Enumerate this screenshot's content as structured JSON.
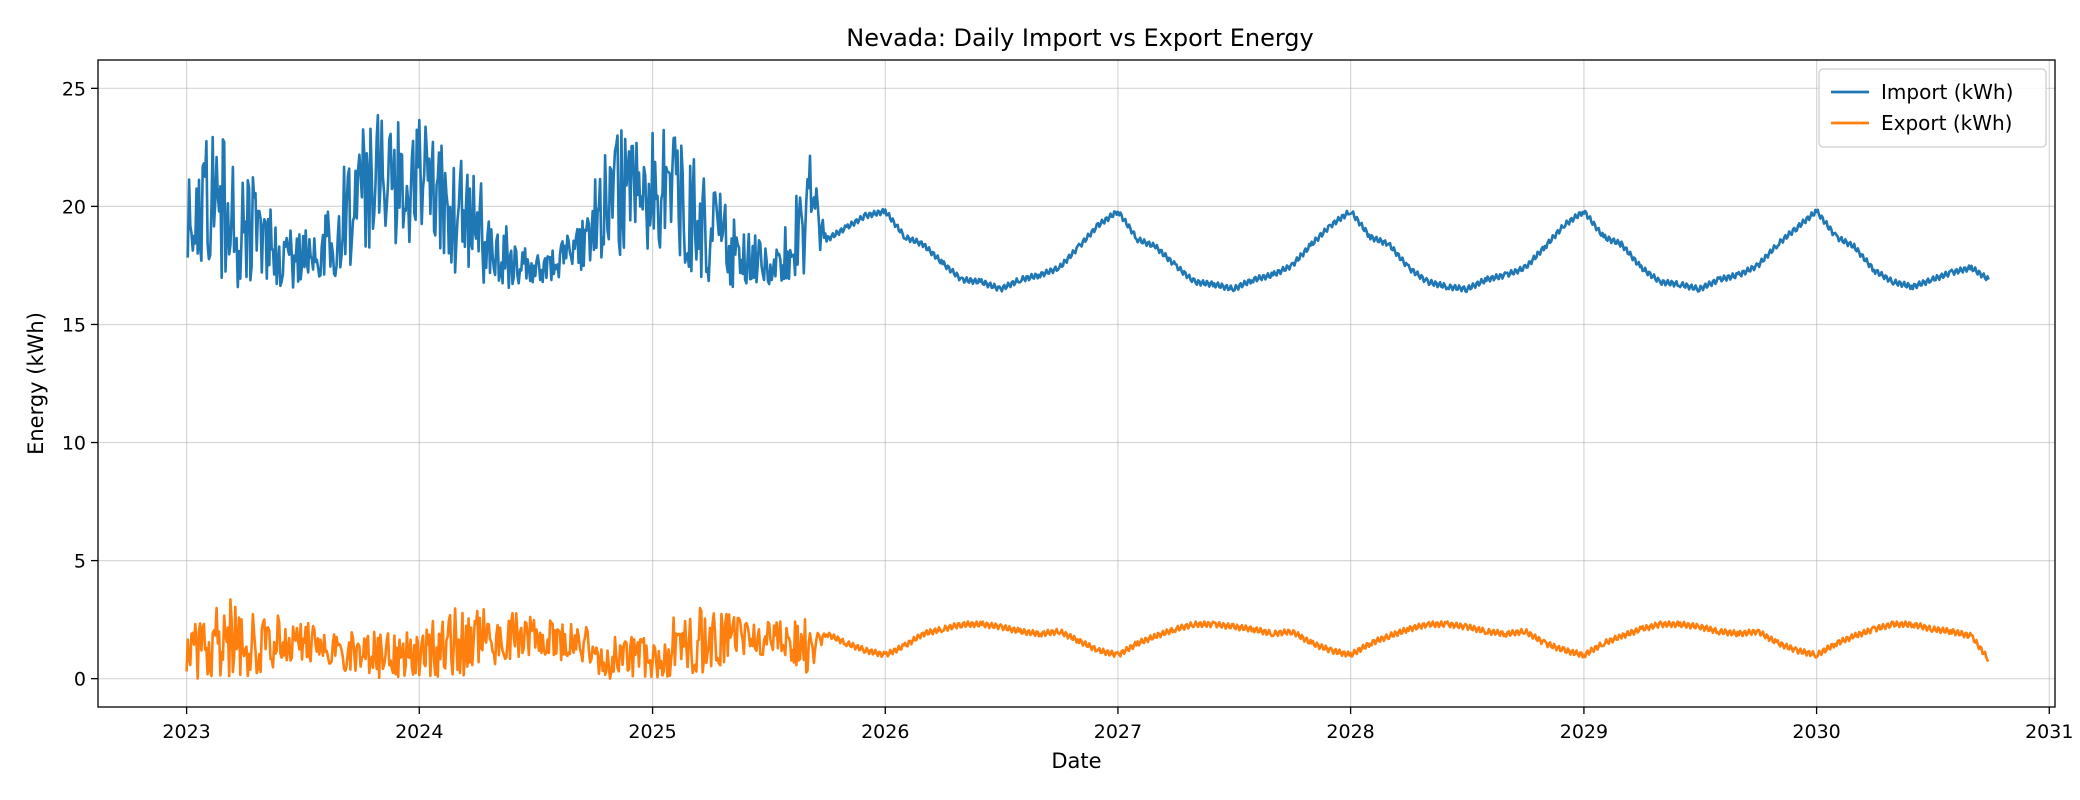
{
  "chart_data": {
    "type": "line",
    "title": "Nevada: Daily Import vs Export Energy",
    "xlabel": "Date",
    "ylabel": "Energy (kWh)",
    "xlim": [
      "2022-08-15",
      "2031-01-10"
    ],
    "ylim": [
      -1.2,
      26.2
    ],
    "xticks": [
      "2023",
      "2024",
      "2025",
      "2026",
      "2027",
      "2028",
      "2029",
      "2030",
      "2031"
    ],
    "yticks": [
      0,
      5,
      10,
      15,
      20,
      25
    ],
    "grid": true,
    "legend_position": "top-right",
    "series": [
      {
        "name": "Import (kWh)",
        "color": "#1f77b4",
        "x": [
          "2023-01-01",
          "2023-02-01",
          "2023-03-01",
          "2023-04-01",
          "2023-05-01",
          "2023-06-01",
          "2023-07-01",
          "2023-08-01",
          "2023-09-01",
          "2023-10-01",
          "2023-11-01",
          "2023-12-01",
          "2024-01-01",
          "2024-02-01",
          "2024-03-01",
          "2024-04-01",
          "2024-05-01",
          "2024-06-01",
          "2024-07-01",
          "2024-08-01",
          "2024-09-01",
          "2024-10-01",
          "2024-11-01",
          "2024-12-01",
          "2025-01-01",
          "2025-02-01",
          "2025-03-01",
          "2025-04-01",
          "2025-05-01",
          "2025-06-01",
          "2025-07-01",
          "2025-08-01",
          "2025-09-01",
          "2025-10-01",
          "2025-11-01",
          "2025-12-01",
          "2026-01-01",
          "2026-02-01",
          "2026-03-01",
          "2026-04-01",
          "2026-05-01",
          "2026-06-01",
          "2026-07-01",
          "2026-08-01",
          "2026-09-01",
          "2026-10-01",
          "2026-11-01",
          "2026-12-01",
          "2027-01-01",
          "2027-02-01",
          "2027-03-01",
          "2027-04-01",
          "2027-05-01",
          "2027-06-01",
          "2027-07-01",
          "2027-08-01",
          "2027-09-01",
          "2027-10-01",
          "2027-11-01",
          "2027-12-01",
          "2028-01-01",
          "2028-02-01",
          "2028-03-01",
          "2028-04-01",
          "2028-05-01",
          "2028-06-01",
          "2028-07-01",
          "2028-08-01",
          "2028-09-01",
          "2028-10-01",
          "2028-11-01",
          "2028-12-01",
          "2029-01-01",
          "2029-02-01",
          "2029-03-01",
          "2029-04-01",
          "2029-05-01",
          "2029-06-01",
          "2029-07-01",
          "2029-08-01",
          "2029-09-01",
          "2029-10-01",
          "2029-11-01",
          "2029-12-01",
          "2030-01-01",
          "2030-02-01",
          "2030-03-01",
          "2030-04-01",
          "2030-05-01",
          "2030-06-01",
          "2030-07-01",
          "2030-08-01",
          "2030-09-01",
          "2030-09-28"
        ],
        "y": [
          19.8,
          19.6,
          19.2,
          18.7,
          18.2,
          17.8,
          17.6,
          17.9,
          18.6,
          19.4,
          20.1,
          20.7,
          21.0,
          20.6,
          19.8,
          18.8,
          18.0,
          17.6,
          17.5,
          17.6,
          18.1,
          18.8,
          19.5,
          20.2,
          20.6,
          20.2,
          19.4,
          18.5,
          17.9,
          17.6,
          17.5,
          17.7,
          18.3,
          18.6,
          19.1,
          19.6,
          19.8,
          18.7,
          18.4,
          17.6,
          16.9,
          16.8,
          16.5,
          16.9,
          17.1,
          17.4,
          18.3,
          19.2,
          19.8,
          18.6,
          18.3,
          17.5,
          16.8,
          16.7,
          16.5,
          16.9,
          17.1,
          17.5,
          18.4,
          19.2,
          19.8,
          18.7,
          18.4,
          17.4,
          16.8,
          16.6,
          16.5,
          16.9,
          17.1,
          17.4,
          18.3,
          19.2,
          19.8,
          18.7,
          18.4,
          17.4,
          16.8,
          16.7,
          16.5,
          16.9,
          17.1,
          17.5,
          18.4,
          19.1,
          19.8,
          18.7,
          18.3,
          17.3,
          16.8,
          16.6,
          16.9,
          17.2,
          17.4,
          16.9
        ],
        "y_min": [
          17.9,
          17.3,
          16.7,
          16.4,
          16.4,
          16.5,
          16.6,
          16.9,
          17.1,
          17.5,
          18.0,
          18.1,
          18.1,
          17.9,
          17.0,
          16.6,
          16.6,
          16.5,
          16.7,
          16.9,
          17.1,
          17.4,
          17.9,
          18.0,
          18.1,
          17.8,
          17.1,
          16.6,
          16.5,
          16.4,
          16.6,
          16.9,
          17.1,
          18.6,
          19.1,
          19.6,
          19.8,
          18.7,
          18.4,
          17.6,
          16.9,
          16.8,
          16.5,
          16.9,
          17.1,
          17.4,
          18.3,
          19.2,
          19.8,
          18.6,
          18.3,
          17.5,
          16.8,
          16.7,
          16.5,
          16.9,
          17.1,
          17.5,
          18.4,
          19.2,
          19.8,
          18.7,
          18.4,
          17.4,
          16.8,
          16.6,
          16.5,
          16.9,
          17.1,
          17.4,
          18.3,
          19.2,
          19.8,
          18.7,
          18.4,
          17.4,
          16.8,
          16.7,
          16.5,
          16.9,
          17.1,
          17.5,
          18.4,
          19.1,
          19.8,
          18.7,
          18.3,
          17.3,
          16.8,
          16.6,
          16.9,
          17.2,
          17.4,
          16.9
        ],
        "y_max": [
          25.0,
          23.8,
          22.9,
          22.0,
          20.8,
          19.5,
          18.9,
          19.8,
          21.5,
          23.3,
          24.1,
          23.6,
          23.8,
          23.2,
          22.2,
          21.3,
          19.8,
          18.6,
          18.1,
          18.3,
          19.5,
          21.6,
          23.2,
          23.4,
          24.1,
          23.5,
          22.4,
          21.4,
          20.1,
          19.1,
          18.4,
          19.3,
          22.9,
          18.6,
          19.1,
          19.6,
          19.8,
          18.7,
          18.4,
          17.6,
          16.9,
          16.8,
          16.5,
          16.9,
          17.1,
          17.4,
          18.3,
          19.2,
          19.8,
          18.6,
          18.3,
          17.5,
          16.8,
          16.7,
          16.5,
          16.9,
          17.1,
          17.5,
          18.4,
          19.2,
          19.8,
          18.7,
          18.4,
          17.4,
          16.8,
          16.6,
          16.5,
          16.9,
          17.1,
          17.4,
          18.3,
          19.2,
          19.8,
          18.7,
          18.4,
          17.4,
          16.8,
          16.7,
          16.5,
          16.9,
          17.1,
          17.5,
          18.4,
          19.1,
          19.8,
          18.7,
          18.3,
          17.3,
          16.8,
          16.6,
          16.9,
          17.2,
          17.4,
          16.9
        ]
      },
      {
        "name": "Export (kWh)",
        "color": "#ff7f0e",
        "x": [
          "2023-01-01",
          "2023-02-01",
          "2023-03-01",
          "2023-04-01",
          "2023-05-01",
          "2023-06-01",
          "2023-07-01",
          "2023-08-01",
          "2023-09-01",
          "2023-10-01",
          "2023-11-01",
          "2023-12-01",
          "2024-01-01",
          "2024-02-01",
          "2024-03-01",
          "2024-04-01",
          "2024-05-01",
          "2024-06-01",
          "2024-07-01",
          "2024-08-01",
          "2024-09-01",
          "2024-10-01",
          "2024-11-01",
          "2024-12-01",
          "2025-01-01",
          "2025-02-01",
          "2025-03-01",
          "2025-04-01",
          "2025-05-01",
          "2025-06-01",
          "2025-07-01",
          "2025-08-01",
          "2025-09-01",
          "2025-10-01",
          "2025-11-01",
          "2025-12-01",
          "2026-01-01",
          "2026-02-01",
          "2026-03-01",
          "2026-04-01",
          "2026-05-01",
          "2026-06-01",
          "2026-07-01",
          "2026-08-01",
          "2026-09-01",
          "2026-10-01",
          "2026-11-01",
          "2026-12-01",
          "2027-01-01",
          "2027-02-01",
          "2027-03-01",
          "2027-04-01",
          "2027-05-01",
          "2027-06-01",
          "2027-07-01",
          "2027-08-01",
          "2027-09-01",
          "2027-10-01",
          "2027-11-01",
          "2027-12-01",
          "2028-01-01",
          "2028-02-01",
          "2028-03-01",
          "2028-04-01",
          "2028-05-01",
          "2028-06-01",
          "2028-07-01",
          "2028-08-01",
          "2028-09-01",
          "2028-10-01",
          "2028-11-01",
          "2028-12-01",
          "2029-01-01",
          "2029-02-01",
          "2029-03-01",
          "2029-04-01",
          "2029-05-01",
          "2029-06-01",
          "2029-07-01",
          "2029-08-01",
          "2029-09-01",
          "2029-10-01",
          "2029-11-01",
          "2029-12-01",
          "2030-01-01",
          "2030-02-01",
          "2030-03-01",
          "2030-04-01",
          "2030-05-01",
          "2030-06-01",
          "2030-07-01",
          "2030-08-01",
          "2030-09-01",
          "2030-09-28"
        ],
        "y": [
          0.9,
          1.1,
          1.4,
          1.5,
          1.4,
          1.6,
          1.7,
          1.6,
          1.5,
          1.2,
          0.9,
          0.8,
          0.9,
          1.2,
          1.6,
          1.7,
          1.8,
          1.9,
          2.0,
          1.9,
          1.7,
          1.3,
          0.9,
          0.8,
          1.0,
          1.3,
          1.6,
          1.8,
          1.9,
          2.1,
          2.0,
          1.9,
          1.6,
          1.9,
          1.5,
          1.2,
          1.0,
          1.4,
          1.9,
          2.1,
          2.3,
          2.3,
          2.2,
          2.0,
          1.9,
          2.0,
          1.6,
          1.2,
          1.0,
          1.5,
          1.8,
          2.1,
          2.3,
          2.3,
          2.2,
          2.1,
          1.9,
          2.0,
          1.5,
          1.2,
          1.0,
          1.5,
          1.8,
          2.1,
          2.3,
          2.3,
          2.2,
          2.0,
          1.9,
          2.0,
          1.5,
          1.2,
          1.0,
          1.5,
          1.8,
          2.1,
          2.3,
          2.3,
          2.2,
          2.0,
          1.9,
          2.0,
          1.5,
          1.2,
          1.0,
          1.5,
          1.8,
          2.1,
          2.3,
          2.3,
          2.1,
          2.0,
          1.8,
          0.8
        ],
        "y_min": [
          0.0,
          0.0,
          0.0,
          0.0,
          0.3,
          0.6,
          0.8,
          0.6,
          0.4,
          0.0,
          0.0,
          0.0,
          0.0,
          0.0,
          0.0,
          0.3,
          0.6,
          0.9,
          1.0,
          0.9,
          0.5,
          0.0,
          0.0,
          0.0,
          0.0,
          0.0,
          0.0,
          0.4,
          0.7,
          1.0,
          1.0,
          0.9,
          0.0,
          1.9,
          1.5,
          1.2,
          1.0,
          1.4,
          1.9,
          2.1,
          2.3,
          2.3,
          2.2,
          2.0,
          1.9,
          2.0,
          1.6,
          1.2,
          1.0,
          1.5,
          1.8,
          2.1,
          2.3,
          2.3,
          2.2,
          2.1,
          1.9,
          2.0,
          1.5,
          1.2,
          1.0,
          1.5,
          1.8,
          2.1,
          2.3,
          2.3,
          2.2,
          2.0,
          1.9,
          2.0,
          1.5,
          1.2,
          1.0,
          1.5,
          1.8,
          2.1,
          2.3,
          2.3,
          2.2,
          2.0,
          1.9,
          2.0,
          1.5,
          1.2,
          1.0,
          1.5,
          1.8,
          2.1,
          2.3,
          2.3,
          2.1,
          2.0,
          1.8,
          0.8
        ],
        "y_max": [
          2.2,
          2.8,
          3.3,
          3.7,
          2.9,
          2.6,
          2.5,
          2.4,
          2.5,
          2.3,
          2.0,
          1.9,
          2.1,
          2.6,
          3.3,
          3.1,
          2.9,
          2.8,
          2.6,
          2.5,
          2.4,
          2.2,
          1.9,
          1.8,
          2.2,
          2.8,
          3.4,
          3.1,
          2.8,
          2.6,
          2.5,
          2.4,
          2.6,
          1.9,
          1.5,
          1.2,
          1.0,
          1.4,
          1.9,
          2.1,
          2.3,
          2.3,
          2.2,
          2.0,
          1.9,
          2.0,
          1.6,
          1.2,
          1.0,
          1.5,
          1.8,
          2.1,
          2.3,
          2.3,
          2.2,
          2.1,
          1.9,
          2.0,
          1.5,
          1.2,
          1.0,
          1.5,
          1.8,
          2.1,
          2.3,
          2.3,
          2.2,
          2.0,
          1.9,
          2.0,
          1.5,
          1.2,
          1.0,
          1.5,
          1.8,
          2.1,
          2.3,
          2.3,
          2.2,
          2.0,
          1.9,
          2.0,
          1.5,
          1.2,
          1.0,
          1.5,
          1.8,
          2.1,
          2.3,
          2.3,
          2.1,
          2.0,
          1.8,
          0.8
        ]
      }
    ]
  }
}
